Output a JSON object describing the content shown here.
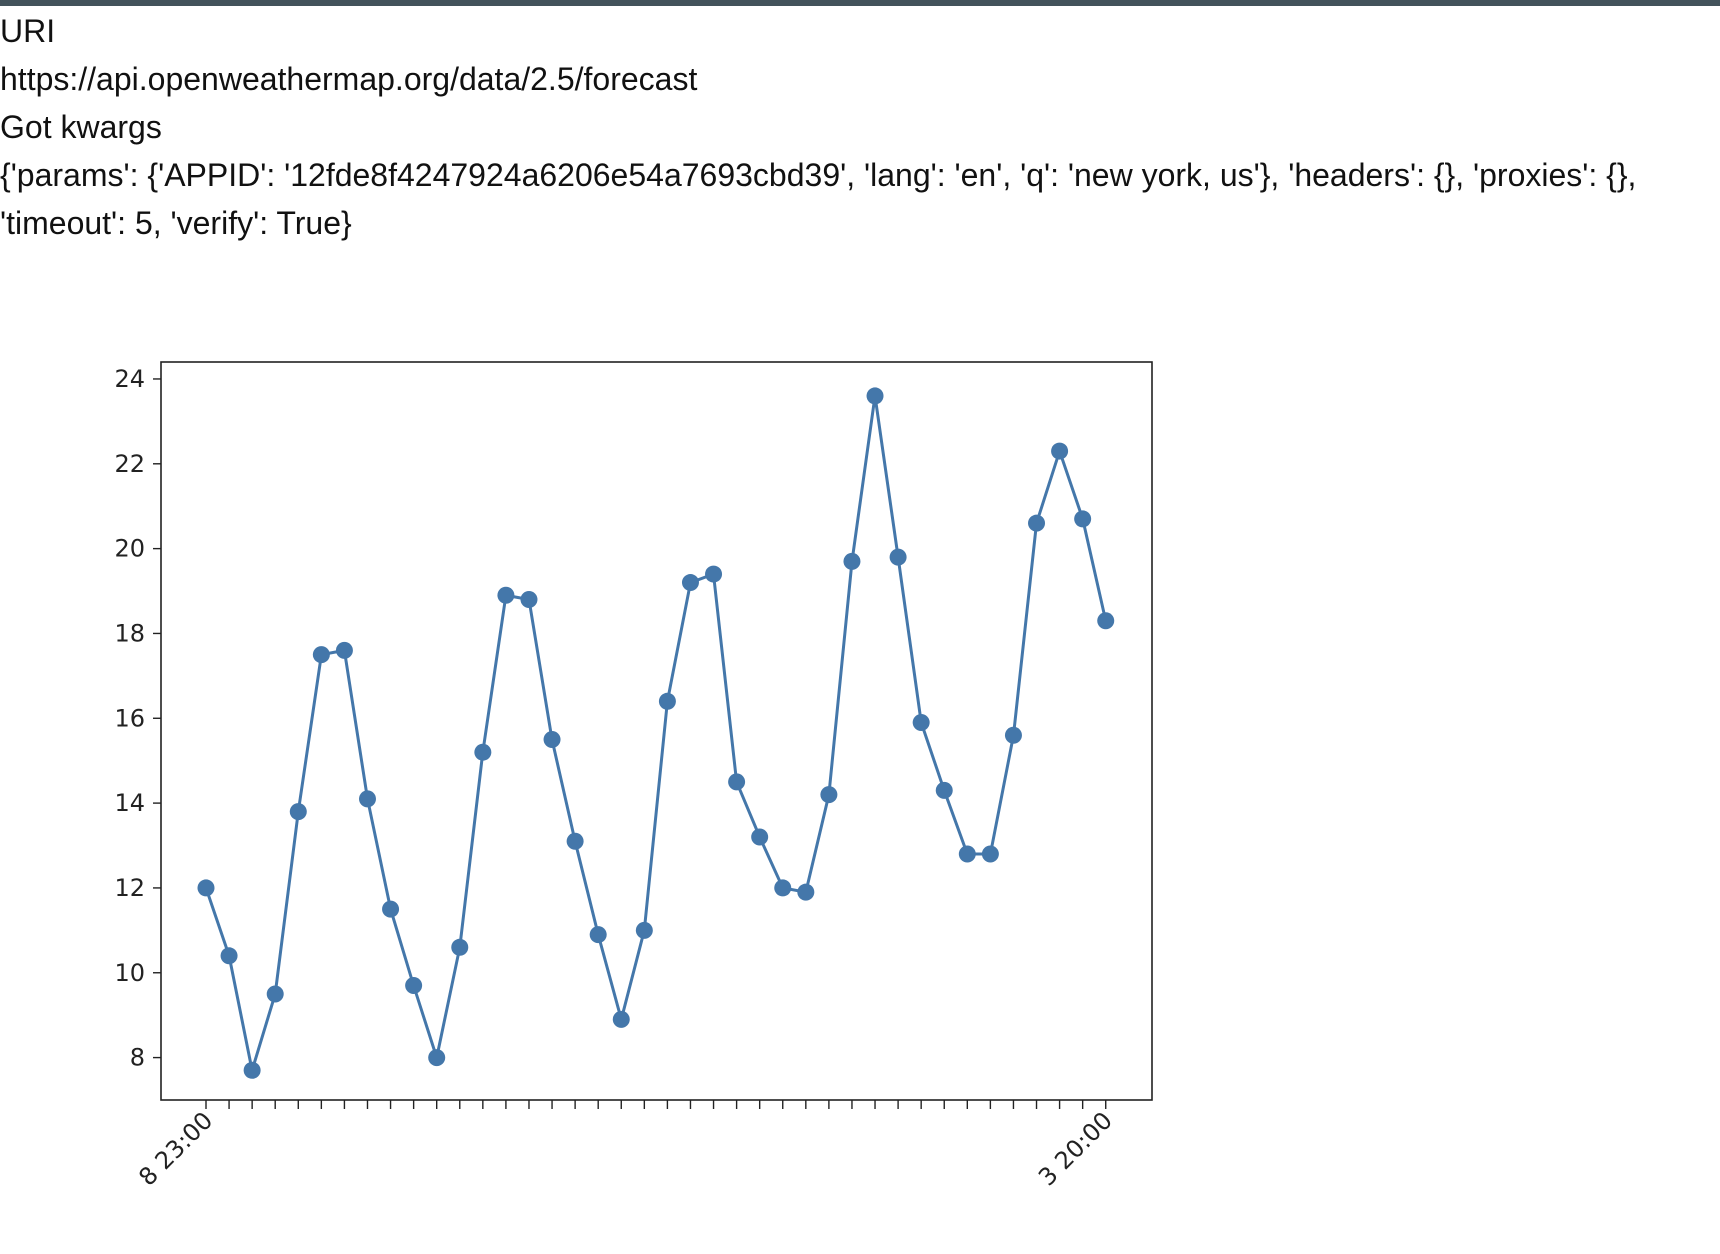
{
  "output": {
    "lines": [
      "URI",
      "https://api.openweathermap.org/data/2.5/forecast",
      "Got kwargs",
      "{'params': {'APPID': '12fde8f4247924a6206e54a7693cbd39', 'lang': 'en', 'q': 'new york, us'}, 'headers': {}, 'proxies': {},",
      "'timeout': 5, 'verify': True}"
    ]
  },
  "chart_data": {
    "type": "line",
    "title": "",
    "xlabel": "",
    "ylabel": "",
    "ylim": [
      7.0,
      24.4
    ],
    "yticks": [
      8,
      10,
      12,
      14,
      16,
      18,
      20,
      22,
      24
    ],
    "grid": false,
    "legend": "none",
    "color": "#4477aa",
    "x_tick_label_rotation_deg": 45,
    "x_visible_tick_labels": [
      "8 23:00",
      "3 20:00"
    ],
    "values": [
      12.0,
      10.4,
      7.7,
      9.5,
      13.8,
      17.5,
      17.6,
      14.1,
      11.5,
      9.7,
      8.0,
      10.6,
      15.2,
      18.9,
      18.8,
      15.5,
      13.1,
      10.9,
      8.9,
      11.0,
      16.4,
      19.2,
      19.4,
      14.5,
      13.2,
      12.0,
      11.9,
      14.2,
      19.7,
      23.6,
      19.8,
      15.9,
      14.3,
      12.8,
      12.8,
      15.6,
      20.6,
      22.3,
      20.7,
      18.3
    ]
  }
}
